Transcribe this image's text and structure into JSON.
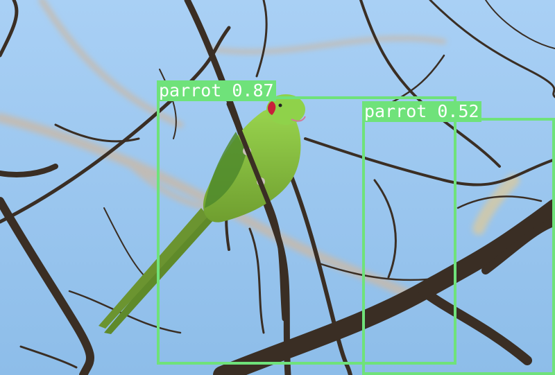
{
  "image": {
    "subject": "parrot-in-tree",
    "colors": {
      "sky": "#9ec6ee",
      "branch": "#3a2e24",
      "parrot": "#8ecf46",
      "box": "#6fe27a",
      "label_text": "#ffffff"
    }
  },
  "detections": [
    {
      "label": "parrot",
      "score": "0.87",
      "text": "parrot 0.87"
    },
    {
      "label": "parrot",
      "score": "0.52",
      "text": "parrot 0.52"
    }
  ]
}
